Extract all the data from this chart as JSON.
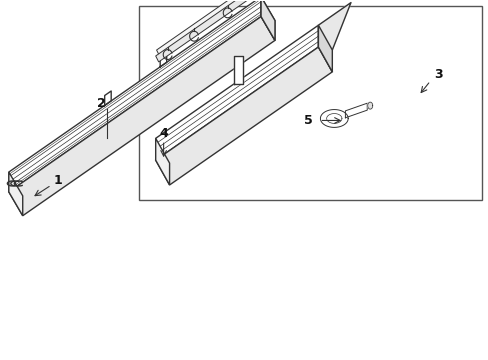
{
  "bg_color": "#ffffff",
  "line_color": "#333333",
  "fig_width": 4.89,
  "fig_height": 3.6,
  "dpi": 100
}
